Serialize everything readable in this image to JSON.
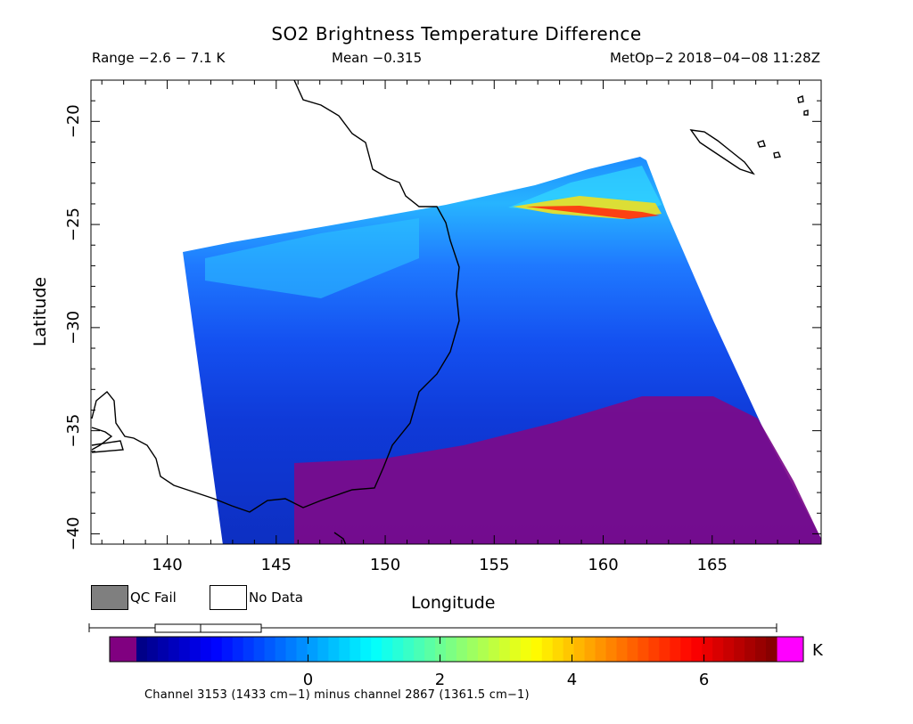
{
  "header": {
    "title": "SO2 Brightness Temperature Difference",
    "range": "Range -2.6 - 7.1 K",
    "mean": "Mean -0.315",
    "satellite": "MetOp-2 2018-04-08 11:28Z"
  },
  "axes": {
    "xlabel": "Longitude",
    "ylabel": "Latitude",
    "x_ticks": [
      "140",
      "145",
      "150",
      "155",
      "160",
      "165"
    ],
    "y_ticks": [
      "-20",
      "-25",
      "-30",
      "-35",
      "-40"
    ],
    "xlim": [
      136.5,
      170
    ],
    "ylim": [
      -40.5,
      -18
    ]
  },
  "legend": {
    "qc_fail": "QC Fail",
    "no_data": "No Data",
    "qc_color": "#7f7f7f"
  },
  "colorbar": {
    "unit": "K",
    "ticks": [
      "0",
      "2",
      "4",
      "6"
    ],
    "tick_values": [
      0,
      2,
      4,
      6
    ],
    "range": [
      -2.6,
      7.1
    ],
    "low_color": "#800080",
    "high_color": "#ff00ff"
  },
  "footnote": "Channel 3153 (1433 cm-1) minus channel 2867 (1361.5 cm-1)"
}
